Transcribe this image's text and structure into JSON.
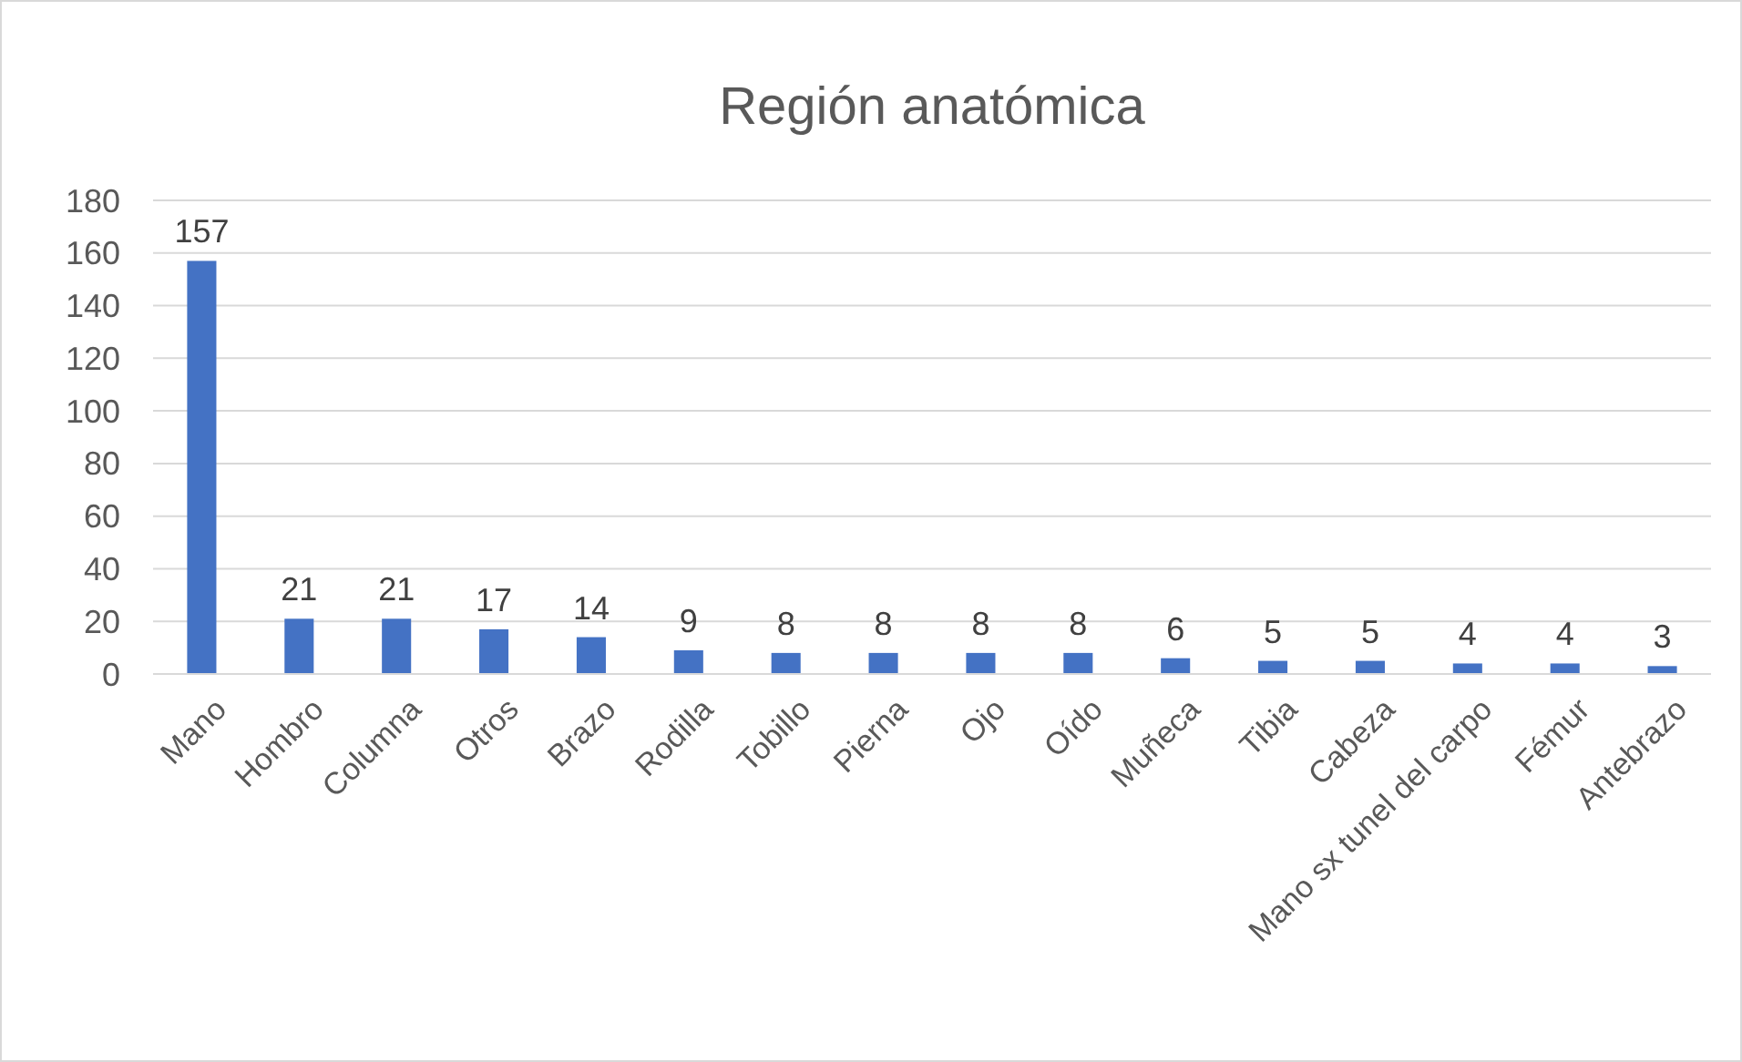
{
  "chart_data": {
    "type": "bar",
    "title": "Región anatómica",
    "categories": [
      "Mano",
      "Hombro",
      "Columna",
      "Otros",
      "Brazo",
      "Rodilla",
      "Tobillo",
      "Pierna",
      "Ojo",
      "Oído",
      "Muñeca",
      "Tibia",
      "Cabeza",
      "Mano sx tunel del carpo",
      "Fémur",
      "Antebrazo"
    ],
    "values": [
      157,
      21,
      21,
      17,
      14,
      9,
      8,
      8,
      8,
      8,
      6,
      5,
      5,
      4,
      4,
      3
    ],
    "color": "#4472c4",
    "ylim": [
      0,
      180
    ],
    "yticks": [
      0,
      20,
      40,
      60,
      80,
      100,
      120,
      140,
      160,
      180
    ],
    "grid": "y",
    "data_labels": true
  }
}
